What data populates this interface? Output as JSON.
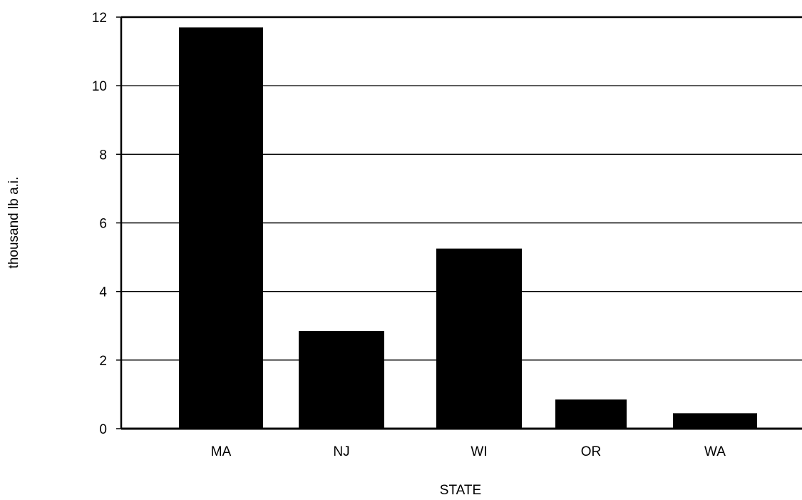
{
  "chart_data": {
    "type": "bar",
    "title": "",
    "xlabel": "STATE",
    "ylabel": "thousand lb a.i.",
    "categories": [
      "MA",
      "NJ",
      "WI",
      "OR",
      "WA"
    ],
    "values": [
      11.7,
      2.85,
      5.25,
      0.85,
      0.45
    ],
    "ylim": [
      0,
      12
    ],
    "yticks": [
      "0",
      "2",
      "4",
      "6",
      "8",
      "10",
      "12"
    ],
    "grid": true,
    "legend": "none",
    "bar_color": "#000000"
  }
}
